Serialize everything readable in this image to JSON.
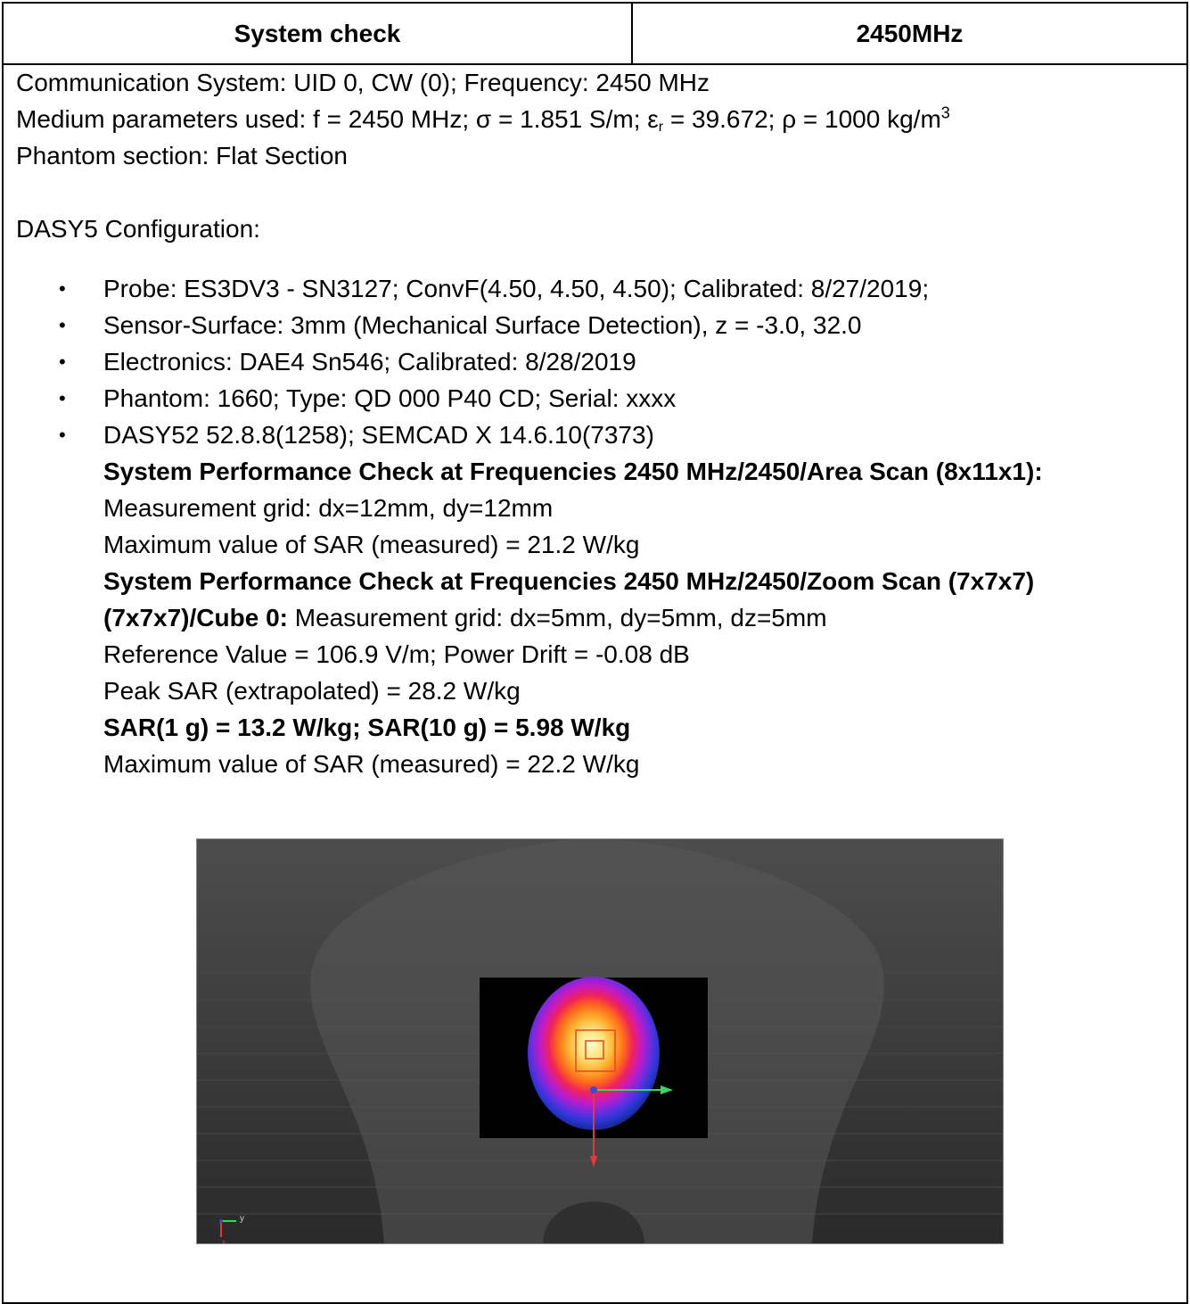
{
  "header": {
    "left": "System check",
    "right": "2450MHz"
  },
  "params": {
    "comm": "Communication System: UID 0, CW (0); Frequency: 2450 MHz",
    "medium_a": "Medium parameters used: f = 2450 MHz; σ = 1.851 S/m; ε",
    "medium_sub": "r",
    "medium_b": " = 39.672; ρ = 1000 kg/m",
    "medium_sup": "3",
    "phantom_section": "Phantom section: Flat Section",
    "dasy_config": "DASY5 Configuration:"
  },
  "config_items": [
    "Probe: ES3DV3 - SN3127; ConvF(4.50, 4.50, 4.50); Calibrated: 8/27/2019;",
    "Sensor-Surface: 3mm (Mechanical Surface Detection), z = -3.0, 32.0",
    "Electronics: DAE4 Sn546; Calibrated: 8/28/2019",
    "Phantom: 1660; Type: QD 000 P40 CD; Serial: xxxx",
    "DASY52 52.8.8(1258); SEMCAD X 14.6.10(7373)"
  ],
  "area_scan": {
    "title": "System Performance Check at Frequencies 2450 MHz/2450/Area Scan (8x11x1):",
    "grid": "Measurement grid: dx=12mm, dy=12mm",
    "max": "Maximum value of SAR (measured) = 21.2 W/kg"
  },
  "zoom_scan": {
    "title1": "System Performance Check at Frequencies 2450 MHz/2450/Zoom Scan (7x7x7)",
    "title2": "(7x7x7)/Cube 0:",
    "grid": " Measurement grid: dx=5mm, dy=5mm, dz=5mm",
    "reference": "Reference Value = 106.9 V/m; Power Drift = -0.08 dB",
    "peak": "Peak SAR (extrapolated) = 28.2 W/kg",
    "sar": "SAR(1 g) = 13.2 W/kg; SAR(10 g) = 5.98 W/kg",
    "max": "Maximum value of SAR (measured) = 22.2 W/kg"
  },
  "axis_labels": {
    "y": "y",
    "x": "x"
  }
}
